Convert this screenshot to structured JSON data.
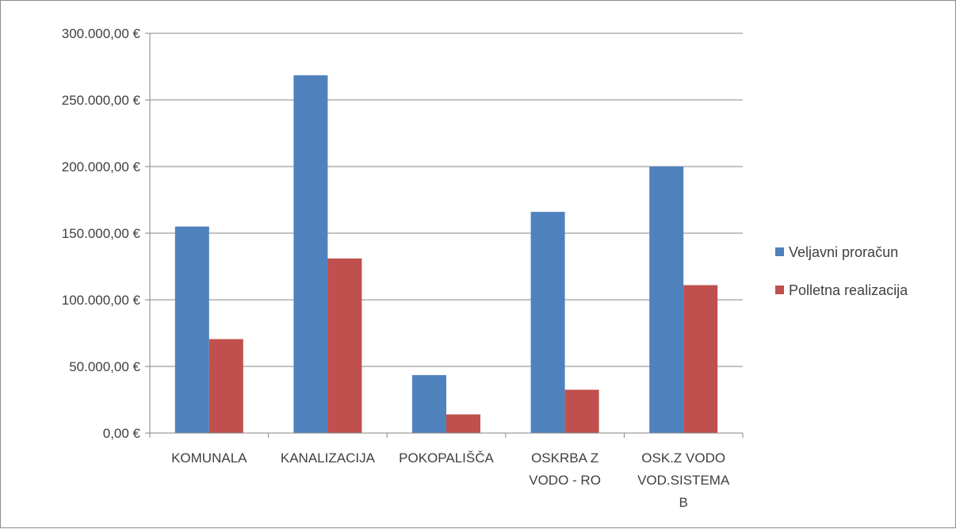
{
  "chart_data": {
    "type": "bar",
    "categories": [
      [
        "KOMUNALA"
      ],
      [
        "KANALIZACIJA"
      ],
      [
        "POKOPALIŠČA"
      ],
      [
        "OSKRBA Z",
        "VODO - RO"
      ],
      [
        "OSK.Z VODO",
        "VOD.SISTEMA",
        "B"
      ]
    ],
    "series": [
      {
        "name": "Veljavni proračun",
        "color": "#4f81bd",
        "values": [
          155000,
          268500,
          43500,
          166000,
          200000
        ]
      },
      {
        "name": "Polletna realizacija",
        "color": "#c0504d",
        "values": [
          70500,
          131000,
          14000,
          32500,
          111000
        ]
      }
    ],
    "ylim": [
      0,
      300000
    ],
    "yticks": [
      0,
      50000,
      100000,
      150000,
      200000,
      250000,
      300000
    ],
    "ytick_labels": [
      "0,00 €",
      "50.000,00 €",
      "100.000,00 €",
      "150.000,00 €",
      "200.000,00 €",
      "250.000,00 €",
      "300.000,00 €"
    ],
    "grid": true,
    "legend_position": "right",
    "title": "",
    "xlabel": "",
    "ylabel": ""
  }
}
